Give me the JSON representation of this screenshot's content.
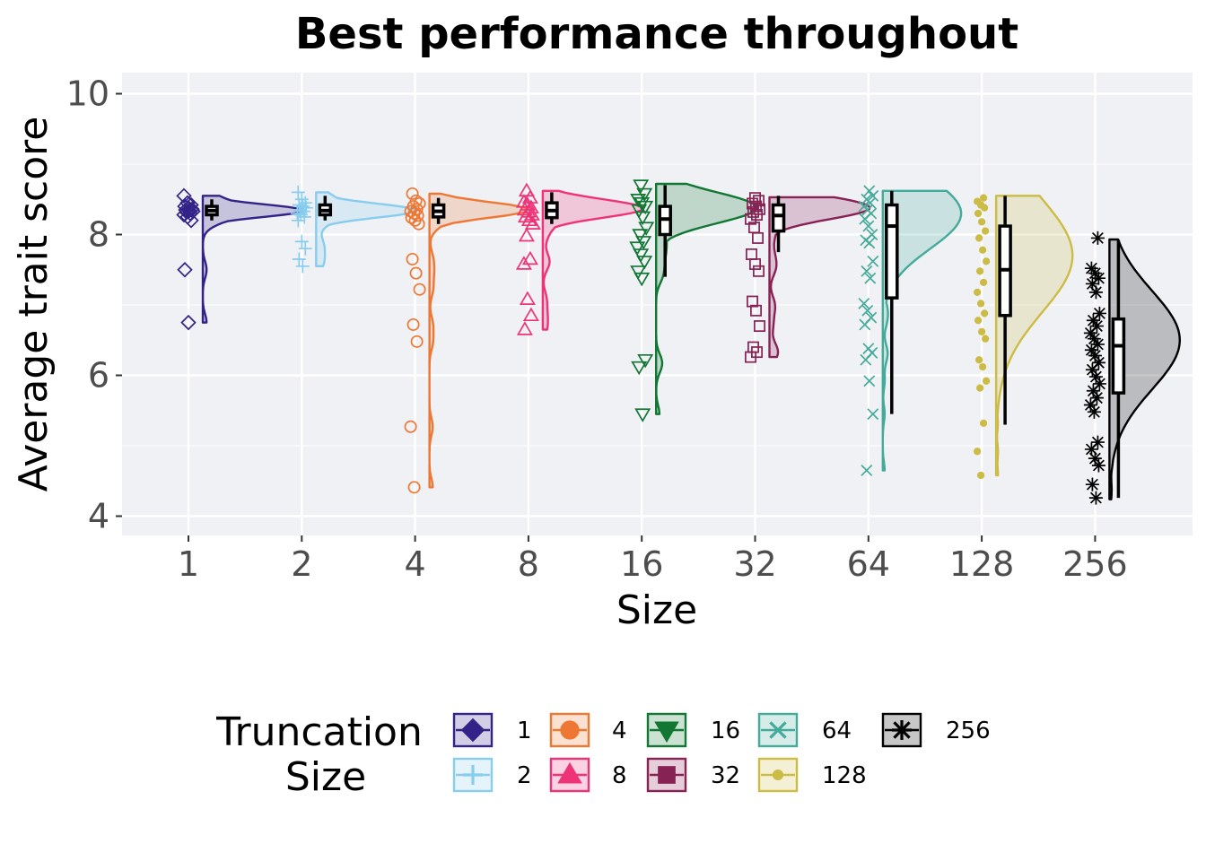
{
  "chart_data": {
    "type": "raincloud",
    "title": "Best performance throughout",
    "xlabel": "Size",
    "ylabel": "Average trait score",
    "categories": [
      "1",
      "2",
      "4",
      "8",
      "16",
      "32",
      "64",
      "128",
      "256"
    ],
    "yticks": [
      4,
      6,
      8,
      10
    ],
    "ylim": [
      3.7,
      10.3
    ],
    "grid": true,
    "legend": {
      "title_lines": [
        "Truncation",
        "Size"
      ],
      "position": "bottom",
      "labels": [
        "1",
        "2",
        "4",
        "8",
        "16",
        "32",
        "64",
        "128",
        "256"
      ]
    },
    "series": [
      {
        "name": "1",
        "color": "#332288",
        "shape": "diamond",
        "points": [
          8.55,
          8.45,
          8.42,
          8.4,
          8.38,
          8.36,
          8.35,
          8.34,
          8.33,
          8.32,
          8.3,
          8.28,
          8.25,
          8.2,
          7.5,
          6.75
        ],
        "box": {
          "q1": 8.28,
          "median": 8.34,
          "q3": 8.4,
          "lo": 8.2,
          "hi": 8.5
        },
        "density": {
          "min": 6.75,
          "max": 8.55,
          "peak": 8.34,
          "spread": 0.09,
          "width": 1.0
        }
      },
      {
        "name": "2",
        "color": "#88CCEE",
        "shape": "plus",
        "points": [
          8.6,
          8.5,
          8.45,
          8.42,
          8.4,
          8.38,
          8.35,
          8.33,
          8.3,
          8.28,
          8.25,
          8.2,
          7.9,
          7.8,
          7.65,
          7.55
        ],
        "box": {
          "q1": 8.28,
          "median": 8.34,
          "q3": 8.42,
          "lo": 8.2,
          "hi": 8.55
        },
        "density": {
          "min": 7.55,
          "max": 8.6,
          "peak": 8.34,
          "spread": 0.1,
          "width": 1.0
        }
      },
      {
        "name": "4",
        "color": "#EE7733",
        "shape": "circle",
        "points": [
          8.58,
          8.48,
          8.44,
          8.4,
          8.36,
          8.33,
          8.3,
          8.27,
          8.24,
          8.2,
          8.15,
          7.65,
          7.45,
          7.22,
          6.72,
          6.48,
          5.27,
          4.41
        ],
        "box": {
          "q1": 8.25,
          "median": 8.33,
          "q3": 8.42,
          "lo": 8.15,
          "hi": 8.52
        },
        "density": {
          "min": 4.41,
          "max": 8.58,
          "peak": 8.35,
          "spread": 0.11,
          "width": 1.0
        }
      },
      {
        "name": "8",
        "color": "#EE3377",
        "shape": "triangle",
        "points": [
          8.62,
          8.52,
          8.46,
          8.42,
          8.38,
          8.35,
          8.32,
          8.28,
          8.25,
          8.2,
          8.15,
          7.98,
          7.65,
          7.58,
          7.08,
          6.85,
          6.65
        ],
        "box": {
          "q1": 8.24,
          "median": 8.34,
          "q3": 8.45,
          "lo": 8.15,
          "hi": 8.6
        },
        "density": {
          "min": 6.65,
          "max": 8.62,
          "peak": 8.37,
          "spread": 0.13,
          "width": 1.0
        }
      },
      {
        "name": "16",
        "color": "#117733",
        "shape": "triangle-down",
        "points": [
          8.7,
          8.58,
          8.5,
          8.45,
          8.4,
          8.35,
          8.25,
          8.1,
          8.0,
          7.9,
          7.82,
          7.72,
          7.62,
          7.48,
          7.38,
          6.22,
          6.12,
          5.45
        ],
        "box": {
          "q1": 8.0,
          "median": 8.22,
          "q3": 8.4,
          "lo": 7.4,
          "hi": 8.7
        },
        "density": {
          "min": 5.45,
          "max": 8.72,
          "peak": 8.38,
          "spread": 0.22,
          "width": 1.0
        }
      },
      {
        "name": "32",
        "color": "#882255",
        "shape": "square",
        "points": [
          8.52,
          8.48,
          8.44,
          8.4,
          8.36,
          8.32,
          8.28,
          8.22,
          8.1,
          7.95,
          7.72,
          7.58,
          7.48,
          7.05,
          6.92,
          6.7,
          6.4,
          6.33,
          6.26
        ],
        "box": {
          "q1": 8.05,
          "median": 8.27,
          "q3": 8.42,
          "lo": 7.75,
          "hi": 8.55
        },
        "density": {
          "min": 6.26,
          "max": 8.53,
          "peak": 8.38,
          "spread": 0.16,
          "width": 1.0
        }
      },
      {
        "name": "64",
        "color": "#44AA99",
        "shape": "cross",
        "points": [
          8.62,
          8.55,
          8.5,
          8.45,
          8.4,
          8.35,
          8.3,
          8.22,
          8.12,
          8.0,
          7.92,
          7.88,
          7.62,
          7.48,
          7.38,
          7.02,
          6.92,
          6.82,
          6.72,
          6.38,
          6.32,
          6.22,
          5.92,
          5.45,
          4.65
        ],
        "box": {
          "q1": 7.1,
          "median": 8.12,
          "q3": 8.42,
          "lo": 5.45,
          "hi": 8.62
        },
        "density": {
          "min": 4.65,
          "max": 8.62,
          "peak": 8.3,
          "spread": 0.5,
          "width": 0.78
        }
      },
      {
        "name": "128",
        "color": "#CCBB44",
        "shape": "dot",
        "points": [
          8.52,
          8.47,
          8.42,
          8.38,
          8.3,
          8.18,
          8.05,
          7.95,
          7.78,
          7.62,
          7.48,
          7.32,
          7.18,
          7.02,
          6.88,
          6.78,
          6.62,
          6.52,
          6.22,
          6.12,
          5.92,
          5.82,
          5.32,
          4.92,
          4.58
        ],
        "box": {
          "q1": 6.85,
          "median": 7.5,
          "q3": 8.12,
          "lo": 5.3,
          "hi": 8.55
        },
        "density": {
          "min": 4.58,
          "max": 8.55,
          "peak": 7.7,
          "spread": 0.8,
          "width": 0.76
        }
      },
      {
        "name": "256",
        "color": "#000000",
        "shape": "asterisk",
        "points": [
          7.95,
          7.52,
          7.45,
          7.38,
          7.3,
          7.18,
          6.88,
          6.78,
          6.7,
          6.6,
          6.52,
          6.44,
          6.36,
          6.28,
          6.18,
          6.08,
          5.98,
          5.88,
          5.78,
          5.68,
          5.58,
          5.48,
          5.05,
          4.95,
          4.82,
          4.72,
          4.45,
          4.26
        ],
        "box": {
          "q1": 5.75,
          "median": 6.42,
          "q3": 6.8,
          "lo": 4.26,
          "hi": 7.92
        },
        "density": {
          "min": 4.24,
          "max": 7.93,
          "peak": 6.5,
          "spread": 0.7,
          "width": 0.7
        }
      }
    ]
  }
}
